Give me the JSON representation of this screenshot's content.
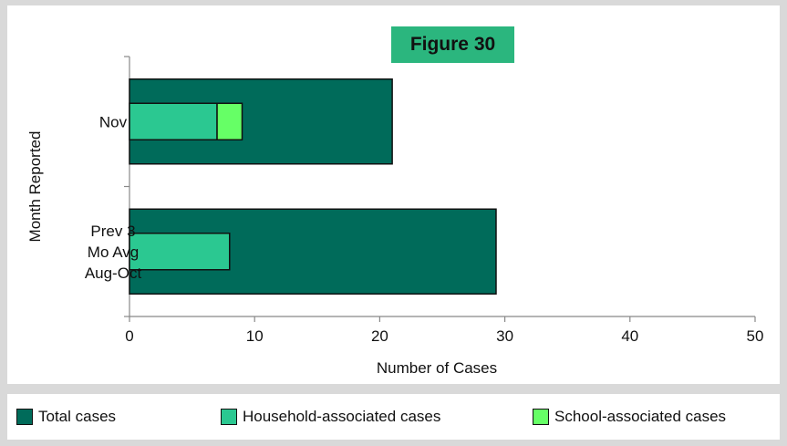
{
  "badge": {
    "label": "Figure 30"
  },
  "colors": {
    "total": "#006b5a",
    "household": "#2bc891",
    "school": "#66ff66",
    "badge": "#2bb67e"
  },
  "chart_data": {
    "type": "bar",
    "orientation": "horizontal",
    "stacking": "overlay",
    "title": "",
    "xlabel": "Number of Cases",
    "ylabel": "Month Reported",
    "xlim": [
      0,
      50
    ],
    "xticks": [
      "0",
      "10",
      "20",
      "30",
      "40",
      "50"
    ],
    "categories": [
      {
        "lines": [
          "Nov"
        ]
      },
      {
        "lines": [
          "Prev 3",
          "Mo Avg",
          "Aug-Oct"
        ]
      }
    ],
    "series": [
      {
        "name": "Total cases",
        "values": [
          21,
          29.3
        ]
      },
      {
        "name": "Household-associated cases",
        "values": [
          7,
          8
        ]
      },
      {
        "name": "School-associated cases",
        "values": [
          2,
          0
        ]
      }
    ],
    "grid": false,
    "legend": "bottom"
  }
}
